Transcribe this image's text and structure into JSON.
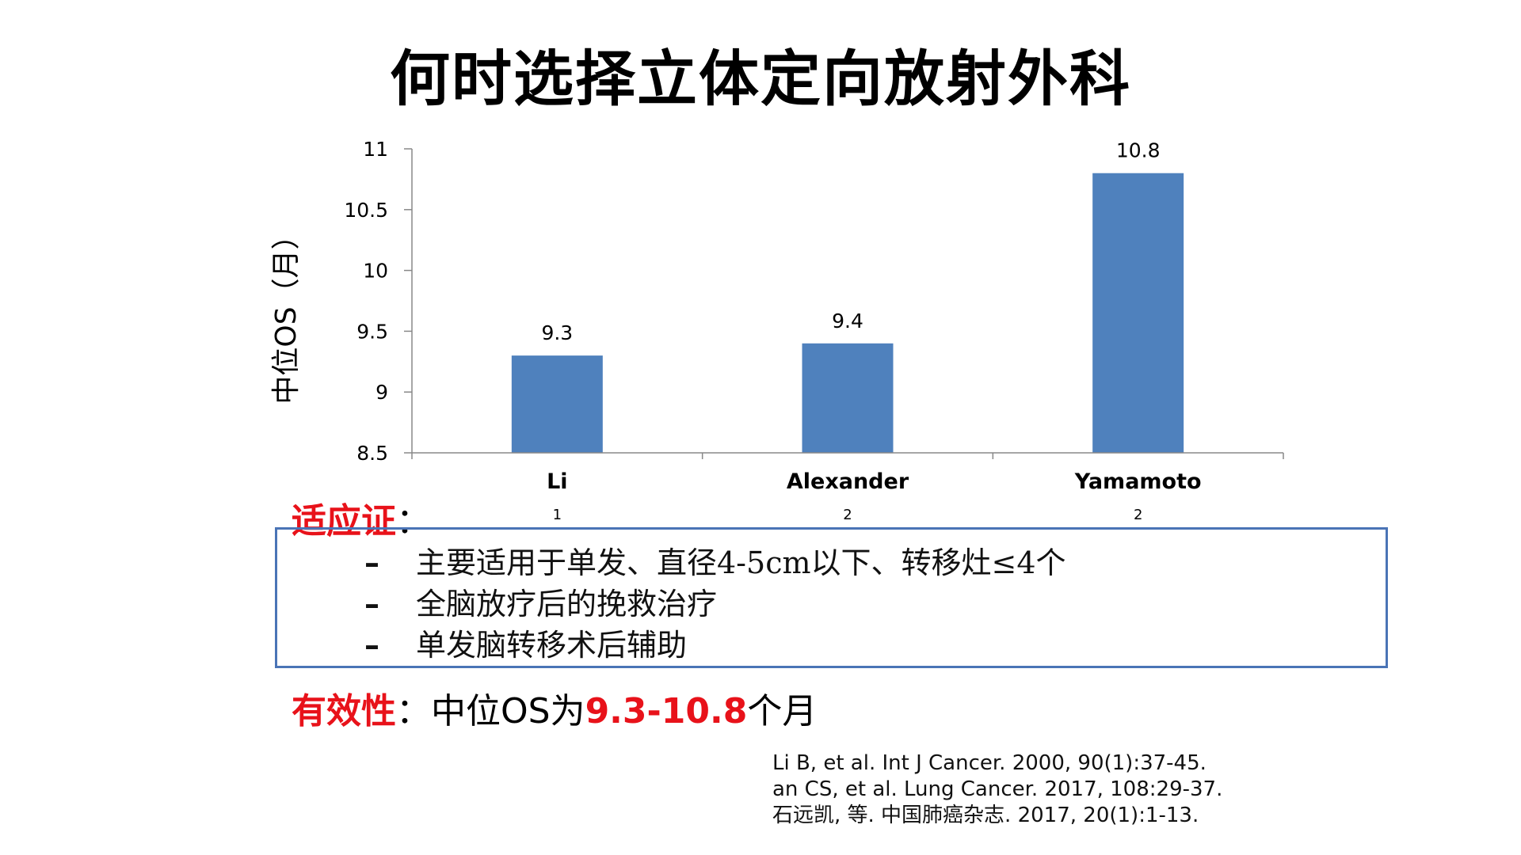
{
  "slide": {
    "title": "何时选择立体定向放射外科"
  },
  "chart_data": {
    "type": "bar",
    "categories": [
      "Li",
      "Alexander",
      "Yamamoto"
    ],
    "category_notes": [
      "1",
      "2",
      "2"
    ],
    "values": [
      9.3,
      9.4,
      10.8
    ],
    "ylabel": "中位OS（月）",
    "ylim": [
      8.5,
      11
    ],
    "yticks": [
      "8.5",
      "9",
      "9.5",
      "10",
      "10.5",
      "11"
    ],
    "data_labels": [
      "9.3",
      "9.4",
      "10.8"
    ],
    "bar_color": "#4f81bd",
    "grid": false
  },
  "indication": {
    "label": "适应证",
    "colon": "：",
    "dash": "–",
    "items": [
      "主要适用于单发、直径4-5cm以下、转移灶≤4个",
      "全脑放疗后的挽救治疗",
      "单发脑转移术后辅助"
    ]
  },
  "efficacy": {
    "label": "有效性",
    "colon": "：",
    "text_before": "中位OS为",
    "range": "9.3-10.8",
    "text_after": "个月"
  },
  "references": [
    "Li B, et al. Int J Cancer. 2000, 90(1):37-45.",
    "an CS, et al. Lung Cancer. 2017, 108:29-37.",
    "石远凯, 等. 中国肺癌杂志. 2017, 20(1):1-13."
  ],
  "colors": {
    "accent_red": "#e8121a",
    "box_border": "#4a74b6"
  }
}
